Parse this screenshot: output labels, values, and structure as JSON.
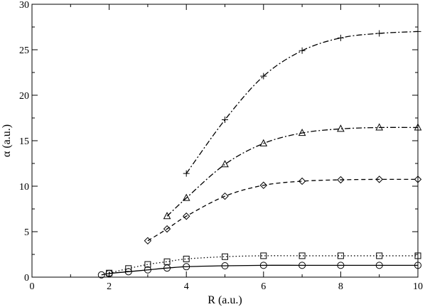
{
  "chart_data": {
    "type": "line",
    "xlabel": "R (a.u.)",
    "ylabel": "α (a.u.)",
    "xlim": [
      0,
      10
    ],
    "ylim": [
      0,
      30
    ],
    "xticks": [
      0,
      2,
      4,
      6,
      8,
      10
    ],
    "yticks": [
      0,
      5,
      10,
      15,
      20,
      25,
      30
    ],
    "grid": false,
    "series": [
      {
        "marker": "circle",
        "line_style": "solid",
        "color": "#000000",
        "x": [
          1.8,
          2.0,
          2.5,
          3.0,
          3.5,
          4.0,
          5.0,
          6.0,
          7.0,
          8.0,
          9.0,
          10.0
        ],
        "y": [
          0.25,
          0.4,
          0.6,
          0.8,
          1.0,
          1.15,
          1.25,
          1.3,
          1.3,
          1.3,
          1.3,
          1.3
        ]
      },
      {
        "marker": "square",
        "line_style": "dotted",
        "color": "#000000",
        "x": [
          2.0,
          2.5,
          3.0,
          3.5,
          4.0,
          5.0,
          6.0,
          7.0,
          8.0,
          9.0,
          10.0
        ],
        "y": [
          0.45,
          0.95,
          1.4,
          1.7,
          2.0,
          2.25,
          2.35,
          2.35,
          2.35,
          2.35,
          2.35
        ]
      },
      {
        "marker": "diamond",
        "line_style": "dashed",
        "color": "#000000",
        "x": [
          3.0,
          3.5,
          4.0,
          5.0,
          6.0,
          7.0,
          8.0,
          9.0,
          10.0
        ],
        "y": [
          4.0,
          5.3,
          6.7,
          8.9,
          10.1,
          10.55,
          10.7,
          10.75,
          10.75
        ]
      },
      {
        "marker": "triangle",
        "line_style": "dash-dot",
        "color": "#000000",
        "x": [
          3.5,
          4.0,
          5.0,
          6.0,
          7.0,
          8.0,
          9.0,
          10.0
        ],
        "y": [
          6.7,
          8.7,
          12.4,
          14.7,
          15.85,
          16.3,
          16.45,
          16.45
        ]
      },
      {
        "marker": "plus",
        "line_style": "dash-dot",
        "color": "#000000",
        "x": [
          4.0,
          5.0,
          6.0,
          7.0,
          8.0,
          9.0,
          10.0
        ],
        "y": [
          11.4,
          17.3,
          22.1,
          24.9,
          26.3,
          26.8,
          27.0
        ]
      }
    ]
  }
}
